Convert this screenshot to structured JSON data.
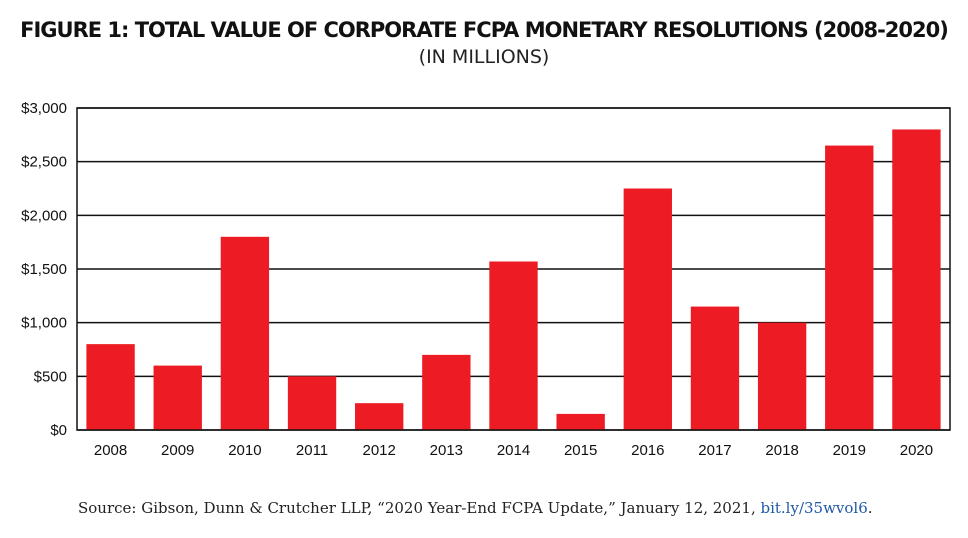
{
  "chart_data": {
    "type": "bar",
    "title": "FIGURE 1: TOTAL VALUE OF CORPORATE FCPA MONETARY RESOLUTIONS (2008-2020)",
    "subtitle": "(IN MILLIONS)",
    "categories": [
      "2008",
      "2009",
      "2010",
      "2011",
      "2012",
      "2013",
      "2014",
      "2015",
      "2016",
      "2017",
      "2018",
      "2019",
      "2020"
    ],
    "values": [
      800,
      600,
      1800,
      500,
      250,
      700,
      1570,
      150,
      2250,
      1150,
      1000,
      2650,
      2800
    ],
    "ylim": [
      0,
      3000
    ],
    "yticks": [
      0,
      500,
      1000,
      1500,
      2000,
      2500,
      3000
    ],
    "ytick_labels": [
      "$0",
      "$500",
      "$1,000",
      "$1,500",
      "$2,000",
      "$2,500",
      "$3,000"
    ],
    "xlabel": "",
    "ylabel": "",
    "grid": true,
    "bar_color": "#ed1c24"
  },
  "source": {
    "text": "Source: Gibson, Dunn & Crutcher LLP, “2020 Year-End FCPA Update,” January 12, 2021, ",
    "link": "bit.ly/35wvol6",
    "end": "."
  }
}
